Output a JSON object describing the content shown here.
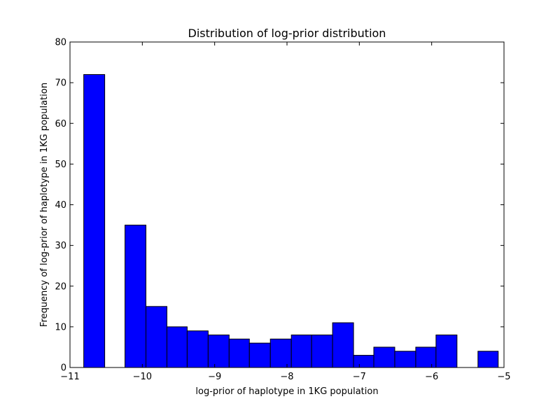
{
  "chart_data": {
    "type": "bar",
    "title": "Distribution of log-prior distribution",
    "xlabel": "log-prior of haplotype in 1KG population",
    "ylabel": "Frequency of log-prior of haplotype in 1KG population",
    "xlim": [
      -11,
      -5
    ],
    "ylim": [
      0,
      80
    ],
    "grid": false,
    "x_ticks": [
      -11,
      -10,
      -9,
      -8,
      -7,
      -6,
      -5
    ],
    "x_tick_labels": [
      "−11",
      "−10",
      "−9",
      "−8",
      "−7",
      "−6",
      "−5"
    ],
    "y_ticks": [
      0,
      10,
      20,
      30,
      40,
      50,
      60,
      70,
      80
    ],
    "y_tick_labels": [
      "0",
      "10",
      "20",
      "30",
      "40",
      "50",
      "60",
      "70",
      "80"
    ],
    "bar_color": "#0000ff",
    "bins": [
      {
        "x0": -10.81,
        "x1": -10.52,
        "value": 72
      },
      {
        "x0": -10.52,
        "x1": -10.24,
        "value": 0
      },
      {
        "x0": -10.24,
        "x1": -9.95,
        "value": 35
      },
      {
        "x0": -9.95,
        "x1": -9.66,
        "value": 15
      },
      {
        "x0": -9.66,
        "x1": -9.38,
        "value": 10
      },
      {
        "x0": -9.38,
        "x1": -9.09,
        "value": 9
      },
      {
        "x0": -9.09,
        "x1": -8.8,
        "value": 8
      },
      {
        "x0": -8.8,
        "x1": -8.52,
        "value": 7
      },
      {
        "x0": -8.52,
        "x1": -8.23,
        "value": 6
      },
      {
        "x0": -8.23,
        "x1": -7.94,
        "value": 7
      },
      {
        "x0": -7.94,
        "x1": -7.66,
        "value": 8
      },
      {
        "x0": -7.66,
        "x1": -7.37,
        "value": 8
      },
      {
        "x0": -7.37,
        "x1": -7.08,
        "value": 11
      },
      {
        "x0": -7.08,
        "x1": -6.8,
        "value": 3
      },
      {
        "x0": -6.8,
        "x1": -6.51,
        "value": 5
      },
      {
        "x0": -6.51,
        "x1": -6.22,
        "value": 4
      },
      {
        "x0": -6.22,
        "x1": -5.94,
        "value": 5
      },
      {
        "x0": -5.94,
        "x1": -5.65,
        "value": 8
      },
      {
        "x0": -5.65,
        "x1": -5.36,
        "value": 0
      },
      {
        "x0": -5.36,
        "x1": -5.08,
        "value": 4
      }
    ]
  }
}
